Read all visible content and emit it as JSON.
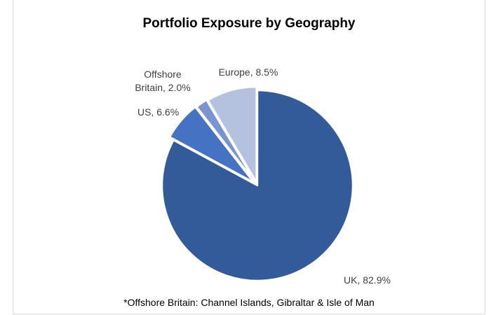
{
  "chart_data": {
    "type": "pie",
    "title": "Portfolio Exposure by Geography",
    "footnote": "*Offshore Britain: Channel Islands, Gibraltar & Isle of Man",
    "slices": [
      {
        "label": "UK",
        "value": 82.9,
        "color": "#335a99",
        "label_lines": [
          "UK, 82.9%"
        ]
      },
      {
        "label": "US",
        "value": 6.6,
        "color": "#4672c4",
        "label_lines": [
          "US, 6.6%"
        ]
      },
      {
        "label": "Offshore Britain",
        "value": 2.0,
        "color": "#7a94cf",
        "label_lines": [
          "Offshore",
          "Britain, 2.0%"
        ]
      },
      {
        "label": "Europe",
        "value": 8.5,
        "color": "#b4c2e0",
        "label_lines": [
          "Europe, 8.5%"
        ]
      }
    ],
    "start_angle": "12 o'clock",
    "direction": "clockwise",
    "legend": "none"
  }
}
